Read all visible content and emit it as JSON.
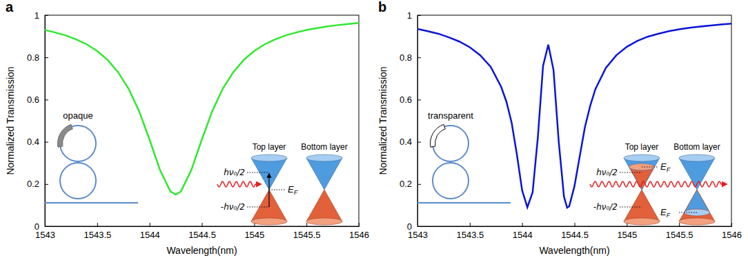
{
  "chart_data": [
    {
      "panel_label": "a",
      "type": "line",
      "xlabel": "Wavelength(nm)",
      "ylabel": "Normalized Transmission",
      "xlim": [
        1543,
        1546
      ],
      "ylim": [
        0,
        1
      ],
      "xticks": [
        1543,
        1543.5,
        1544,
        1544.5,
        1545,
        1545.5,
        1546
      ],
      "yticks": [
        0,
        0.2,
        0.4,
        0.6,
        0.8,
        1
      ],
      "x": [
        1543.0,
        1543.1,
        1543.2,
        1543.3,
        1543.4,
        1543.5,
        1543.6,
        1543.7,
        1543.8,
        1543.9,
        1544.0,
        1544.1,
        1544.2,
        1544.25,
        1544.3,
        1544.4,
        1544.5,
        1544.6,
        1544.7,
        1544.8,
        1544.9,
        1545.0,
        1545.1,
        1545.2,
        1545.3,
        1545.4,
        1545.5,
        1545.6,
        1545.7,
        1545.8,
        1545.9,
        1546.0
      ],
      "series": [
        {
          "color": "#2ee82e",
          "values": [
            0.93,
            0.918,
            0.904,
            0.885,
            0.862,
            0.83,
            0.788,
            0.73,
            0.652,
            0.546,
            0.411,
            0.267,
            0.165,
            0.15,
            0.165,
            0.267,
            0.411,
            0.546,
            0.652,
            0.73,
            0.788,
            0.83,
            0.862,
            0.885,
            0.904,
            0.918,
            0.93,
            0.939,
            0.947,
            0.953,
            0.958,
            0.963
          ]
        }
      ],
      "annotations": {
        "ring_label": "opaque",
        "top_layer": "Top layer",
        "bottom_layer": "Bottom layer",
        "upper_level": "hν₀/2",
        "lower_level": "-hν₀/2",
        "fermi": "EF"
      }
    },
    {
      "panel_label": "b",
      "type": "line",
      "xlabel": "Wavelength(nm)",
      "ylabel": "Normalized Transmission",
      "xlim": [
        1543,
        1546
      ],
      "ylim": [
        0,
        1
      ],
      "xticks": [
        1543,
        1543.5,
        1544,
        1544.5,
        1545,
        1545.5,
        1546
      ],
      "yticks": [
        0,
        0.2,
        0.4,
        0.6,
        0.8,
        1
      ],
      "x": [
        1543.0,
        1543.1,
        1543.2,
        1543.3,
        1543.4,
        1543.5,
        1543.6,
        1543.7,
        1543.8,
        1543.85,
        1543.9,
        1543.95,
        1544.0,
        1544.05,
        1544.1,
        1544.15,
        1544.2,
        1544.25,
        1544.3,
        1544.35,
        1544.4,
        1544.43,
        1544.45,
        1544.5,
        1544.55,
        1544.6,
        1544.65,
        1544.7,
        1544.8,
        1544.9,
        1545.0,
        1545.1,
        1545.2,
        1545.3,
        1545.4,
        1545.5,
        1545.6,
        1545.7,
        1545.8,
        1545.9,
        1546.0
      ],
      "series": [
        {
          "color": "#0a14d8",
          "values": [
            0.935,
            0.924,
            0.912,
            0.895,
            0.875,
            0.848,
            0.81,
            0.755,
            0.66,
            0.59,
            0.49,
            0.34,
            0.17,
            0.09,
            0.16,
            0.42,
            0.76,
            0.86,
            0.74,
            0.4,
            0.14,
            0.088,
            0.095,
            0.19,
            0.33,
            0.47,
            0.57,
            0.65,
            0.75,
            0.81,
            0.85,
            0.878,
            0.898,
            0.912,
            0.924,
            0.933,
            0.94,
            0.946,
            0.951,
            0.956,
            0.96
          ]
        }
      ],
      "annotations": {
        "ring_label": "transparent",
        "top_layer": "Top layer",
        "bottom_layer": "Bottom layer",
        "upper_level": "hν₀/2",
        "lower_level": "-hν₀/2",
        "top_fermi": "EF",
        "bottom_fermi": "EF"
      }
    }
  ]
}
